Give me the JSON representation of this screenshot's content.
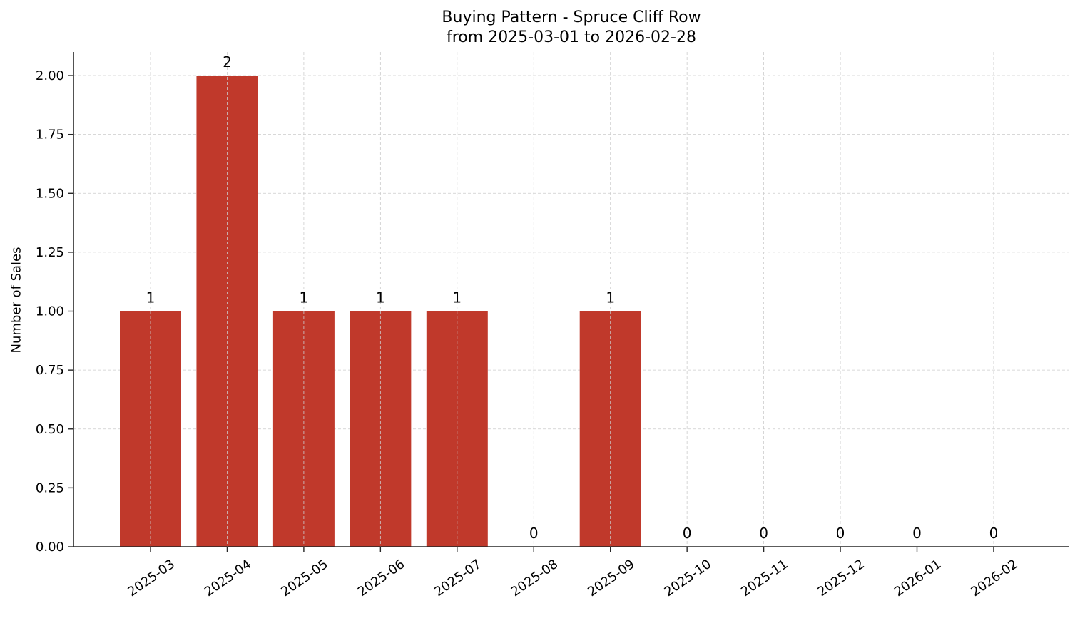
{
  "chart_data": {
    "type": "bar",
    "title": "Buying Pattern - Spruce Cliff Row",
    "subtitle": "from 2025-03-01 to 2026-02-28",
    "xlabel": "",
    "ylabel": "Number of Sales",
    "categories": [
      "2025-03",
      "2025-04",
      "2025-05",
      "2025-06",
      "2025-07",
      "2025-08",
      "2025-09",
      "2025-10",
      "2025-11",
      "2025-12",
      "2026-01",
      "2026-02"
    ],
    "values": [
      1,
      2,
      1,
      1,
      1,
      0,
      1,
      0,
      0,
      0,
      0,
      0
    ],
    "data_labels": [
      "1",
      "2",
      "1",
      "1",
      "1",
      "0",
      "1",
      "0",
      "0",
      "0",
      "0",
      "0"
    ],
    "ylim": [
      0,
      2.1
    ],
    "yticks": [
      0,
      0.25,
      0.5,
      0.75,
      1.0,
      1.25,
      1.5,
      1.75,
      2.0
    ],
    "ytick_labels": [
      "0.00",
      "0.25",
      "0.50",
      "0.75",
      "1.00",
      "1.25",
      "1.50",
      "1.75",
      "2.00"
    ],
    "grid": true,
    "legend": null,
    "bar_color": "#c0392b",
    "xtick_rotation": 35
  }
}
